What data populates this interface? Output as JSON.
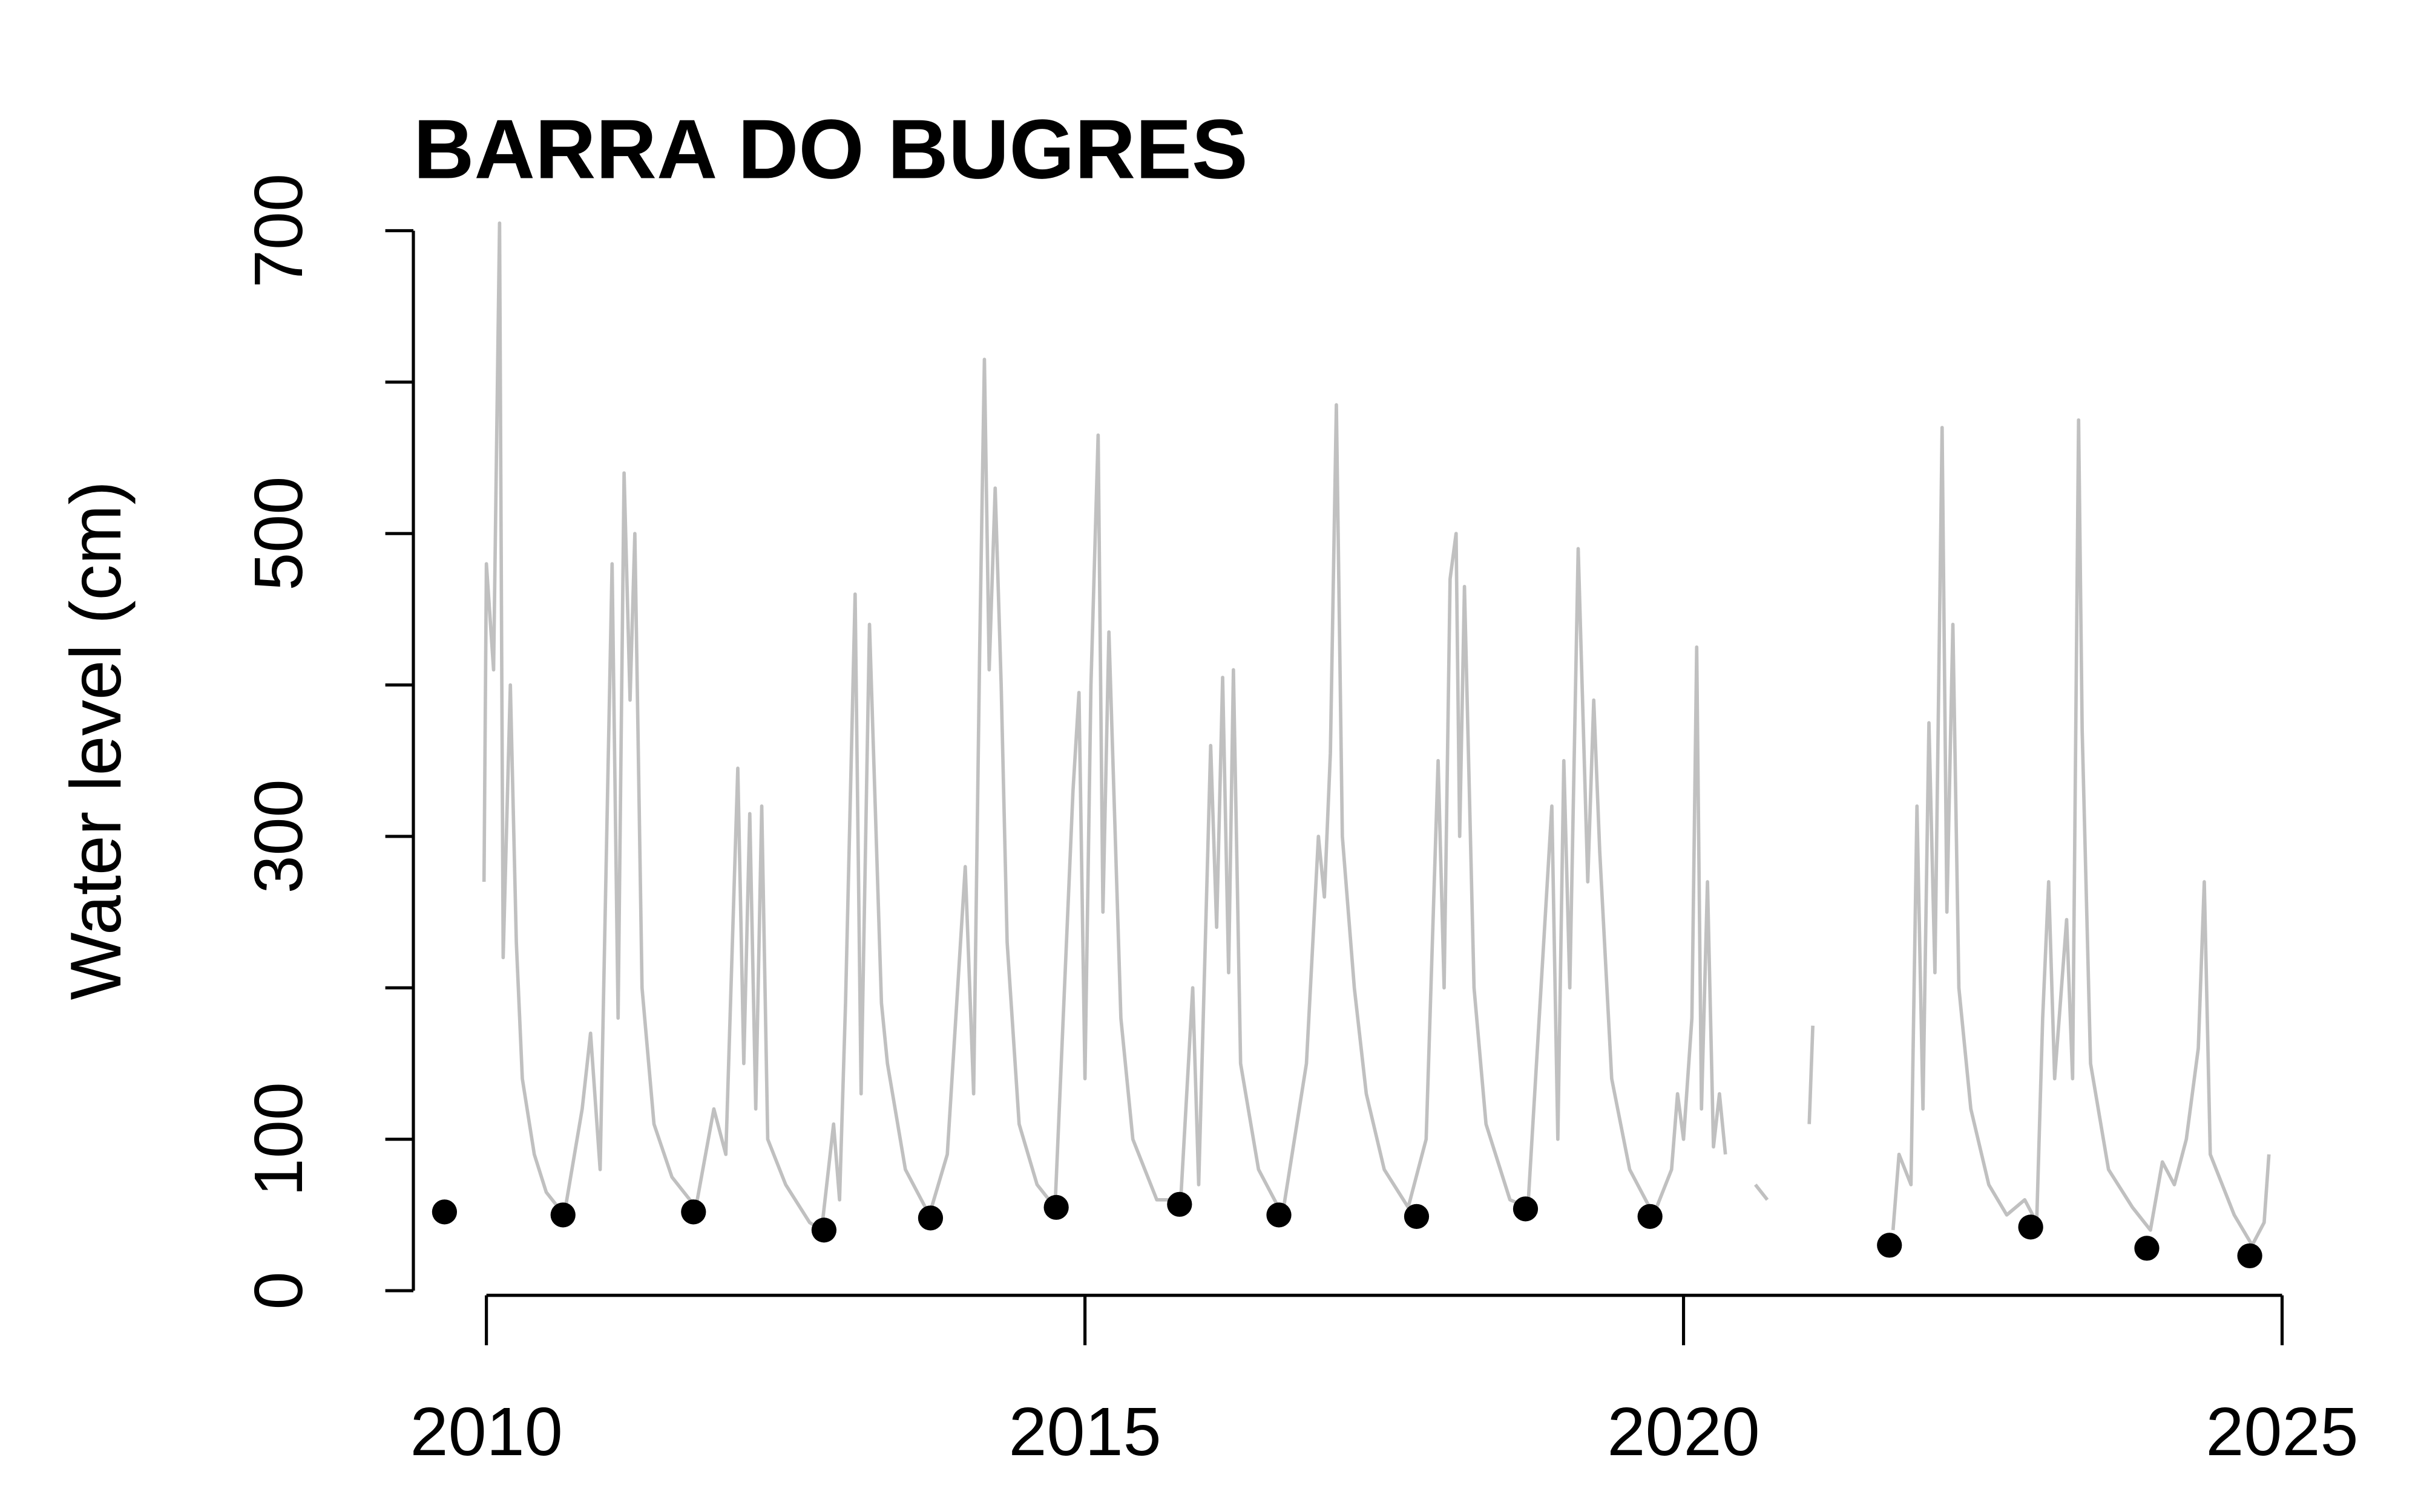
{
  "chart_data": {
    "type": "line",
    "title": "BARRA DO BUGRES",
    "y_label": "Water level (cm)",
    "xlim": [
      2009.39,
      2025.6
    ],
    "ylim": [
      0,
      700
    ],
    "xticks": [
      2010,
      2015,
      2020,
      2025
    ],
    "yticks": [
      0,
      100,
      {
        "value": 200,
        "label": null
      },
      300,
      {
        "value": 400,
        "label": null
      },
      500,
      {
        "value": 600,
        "label": null
      },
      700
    ],
    "series": [
      {
        "mode": "lines",
        "color": "#c0c0c0",
        "x": [
          2009.98,
          2010.0,
          2010.06,
          2010.11,
          2010.14,
          2010.2,
          2010.25,
          2010.3,
          2010.4,
          2010.5,
          2010.65,
          2010.8,
          2010.87,
          2010.95,
          2011.05,
          2011.1,
          2011.15,
          2011.2,
          2011.24,
          2011.3,
          2011.4,
          2011.55,
          2011.75,
          2011.9,
          2012.0,
          2012.1,
          2012.15,
          2012.2,
          2012.25,
          2012.3,
          2012.35,
          2012.5,
          2012.7,
          2012.8,
          2012.9,
          2012.95,
          2013.0,
          2013.08,
          2013.13,
          2013.2,
          2013.3,
          2013.35,
          2013.5,
          2013.7,
          2013.85,
          2014.0,
          2014.07,
          2014.12,
          2014.16,
          2014.2,
          2014.25,
          2014.3,
          2014.35,
          2014.45,
          2014.6,
          2014.75,
          2014.9,
          2014.95,
          2015.0,
          2015.05,
          2015.11,
          2015.15,
          2015.2,
          2015.3,
          2015.4,
          2015.6,
          2015.8,
          2015.9,
          2015.95,
          2016.05,
          2016.1,
          2016.15,
          2016.2,
          2016.24,
          2016.3,
          2016.45,
          2016.65,
          2016.85,
          2016.95,
          2017.0,
          2017.05,
          2017.1,
          2017.15,
          2017.25,
          2017.35,
          2017.5,
          2017.7,
          2017.85,
          2017.95,
          2018.0,
          2018.05,
          2018.1,
          2018.13,
          2018.17,
          2018.25,
          2018.35,
          2018.55,
          2018.7,
          2018.9,
          2018.95,
          2019.0,
          2019.05,
          2019.12,
          2019.2,
          2019.25,
          2019.3,
          2019.4,
          2019.55,
          2019.75,
          2019.9,
          2019.95,
          2020.0,
          2020.07,
          2020.11,
          2020.15,
          2020.2,
          2020.25,
          2020.3,
          2020.35,
          2020.45,
          2020.6,
          2020.7,
          2020.85,
          2021.05,
          2021.08,
          2021.4,
          2021.75,
          2021.8,
          2021.9,
          2021.95,
          2022.0,
          2022.05,
          2022.1,
          2022.16,
          2022.2,
          2022.25,
          2022.3,
          2022.4,
          2022.55,
          2022.7,
          2022.85,
          2022.95,
          2023.0,
          2023.05,
          2023.1,
          2023.2,
          2023.25,
          2023.3,
          2023.33,
          2023.4,
          2023.55,
          2023.75,
          2023.9,
          2024.0,
          2024.1,
          2024.2,
          2024.3,
          2024.35,
          2024.4,
          2024.5,
          2024.6,
          2024.75,
          2024.85,
          2024.89
        ],
        "values": [
          270,
          480,
          410,
          705,
          220,
          400,
          230,
          140,
          90,
          65,
          50,
          120,
          170,
          80,
          480,
          180,
          540,
          390,
          500,
          200,
          110,
          75,
          55,
          120,
          90,
          345,
          150,
          315,
          120,
          320,
          100,
          70,
          45,
          40,
          110,
          60,
          190,
          460,
          130,
          440,
          190,
          150,
          80,
          50,
          90,
          280,
          130,
          420,
          615,
          410,
          530,
          400,
          230,
          110,
          70,
          55,
          330,
          395,
          140,
          400,
          565,
          250,
          435,
          180,
          100,
          60,
          60,
          200,
          70,
          360,
          240,
          405,
          210,
          410,
          150,
          80,
          50,
          150,
          300,
          260,
          355,
          585,
          300,
          200,
          130,
          80,
          55,
          100,
          350,
          200,
          470,
          500,
          300,
          465,
          200,
          110,
          60,
          55,
          320,
          100,
          350,
          200,
          490,
          270,
          390,
          290,
          140,
          80,
          50,
          80,
          130,
          100,
          180,
          425,
          120,
          270,
          95,
          130,
          90,
          null,
          70,
          60,
          null,
          110,
          175,
          null,
          40,
          90,
          70,
          320,
          120,
          375,
          210,
          570,
          250,
          440,
          200,
          120,
          70,
          50,
          60,
          45,
          180,
          270,
          140,
          245,
          140,
          575,
          370,
          150,
          80,
          55,
          40,
          85,
          70,
          100,
          160,
          270,
          90,
          70,
          50,
          30,
          45,
          90
        ]
      },
      {
        "mode": "markers",
        "color": "#000000",
        "x": [
          2009.65,
          2010.64,
          2011.73,
          2012.82,
          2013.71,
          2014.76,
          2015.79,
          2016.62,
          2017.77,
          2018.68,
          2019.72,
          2021.72,
          2022.9,
          2023.87,
          2024.73
        ],
        "values": [
          52,
          50,
          52,
          40,
          48,
          55,
          57,
          50,
          49,
          54,
          49,
          30,
          42,
          28,
          23
        ]
      }
    ]
  }
}
